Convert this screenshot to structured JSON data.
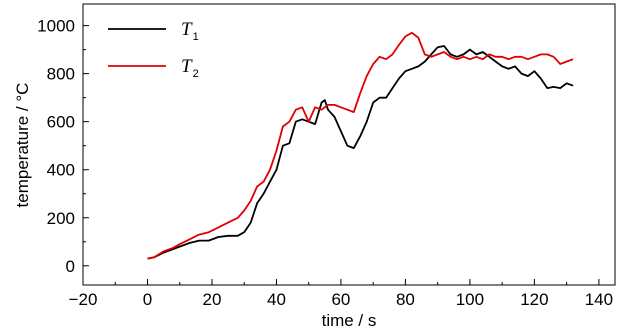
{
  "chart_data": {
    "type": "line",
    "xlabel": "time / s",
    "ylabel": "temperature / °C",
    "xlim": [
      -20,
      145
    ],
    "ylim": [
      -80,
      1090
    ],
    "xticks": [
      -20,
      0,
      20,
      40,
      60,
      80,
      100,
      120,
      140
    ],
    "xtick_labels": [
      "−20",
      "0",
      "20",
      "40",
      "60",
      "80",
      "100",
      "120",
      "140"
    ],
    "yticks": [
      0,
      200,
      400,
      600,
      800,
      1000
    ],
    "ytick_labels": [
      "0",
      "200",
      "400",
      "600",
      "800",
      "1000"
    ],
    "grid": false,
    "legend_position": "top-left",
    "series": [
      {
        "name": "T",
        "name_subscript": "1",
        "color": "#000000",
        "x": [
          0,
          2,
          5,
          8,
          10,
          13,
          16,
          19,
          22,
          25,
          28,
          30,
          32,
          34,
          36,
          38,
          40,
          42,
          44,
          46,
          48,
          50,
          52,
          54,
          55,
          56,
          58,
          60,
          62,
          64,
          66,
          68,
          70,
          72,
          74,
          76,
          78,
          80,
          82,
          84,
          86,
          88,
          90,
          92,
          94,
          96,
          98,
          100,
          102,
          104,
          106,
          108,
          110,
          112,
          114,
          116,
          118,
          120,
          122,
          124,
          126,
          128,
          130,
          132
        ],
        "y": [
          30,
          35,
          55,
          70,
          80,
          95,
          105,
          105,
          120,
          125,
          125,
          140,
          180,
          260,
          300,
          350,
          400,
          500,
          510,
          600,
          610,
          600,
          590,
          680,
          690,
          650,
          620,
          560,
          500,
          490,
          540,
          600,
          680,
          700,
          700,
          740,
          780,
          810,
          820,
          830,
          850,
          880,
          910,
          915,
          880,
          870,
          880,
          900,
          880,
          890,
          870,
          850,
          830,
          820,
          830,
          800,
          790,
          810,
          780,
          740,
          745,
          740,
          760,
          750
        ]
      },
      {
        "name": "T",
        "name_subscript": "2",
        "color": "#e00000",
        "x": [
          0,
          2,
          5,
          8,
          10,
          13,
          16,
          19,
          22,
          25,
          28,
          30,
          32,
          34,
          36,
          38,
          40,
          42,
          44,
          46,
          48,
          50,
          52,
          54,
          55,
          56,
          58,
          60,
          62,
          64,
          66,
          68,
          70,
          72,
          74,
          76,
          78,
          80,
          82,
          84,
          86,
          88,
          90,
          92,
          94,
          96,
          98,
          100,
          102,
          104,
          106,
          108,
          110,
          112,
          114,
          116,
          118,
          120,
          122,
          124,
          126,
          128,
          130,
          132
        ],
        "y": [
          30,
          35,
          60,
          75,
          90,
          110,
          130,
          140,
          160,
          180,
          200,
          230,
          270,
          330,
          350,
          400,
          480,
          580,
          600,
          650,
          660,
          600,
          660,
          650,
          660,
          670,
          670,
          660,
          650,
          640,
          720,
          790,
          840,
          870,
          860,
          880,
          920,
          955,
          970,
          950,
          880,
          870,
          880,
          890,
          870,
          860,
          870,
          860,
          870,
          860,
          880,
          870,
          870,
          860,
          870,
          870,
          860,
          870,
          880,
          880,
          870,
          840,
          850,
          860
        ]
      }
    ]
  }
}
